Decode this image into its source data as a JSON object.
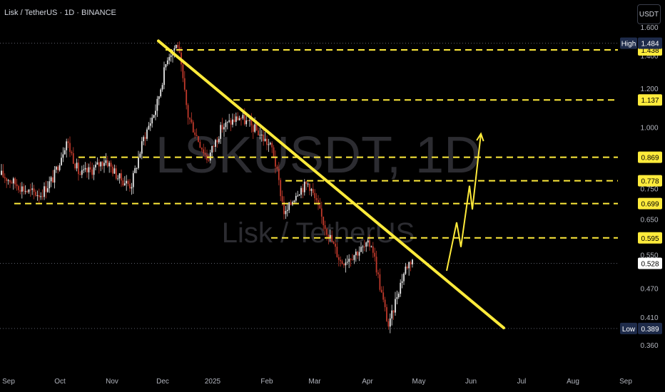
{
  "header": {
    "title": "Lisk / TetherUS · 1D · BINANCE",
    "currency_button": "USDT"
  },
  "watermark": {
    "ticker": "LSKUSDT, 1D",
    "name": "Lisk / TetherUS"
  },
  "colors": {
    "background": "#000000",
    "up_candle": "#e8e8e8",
    "down_candle": "#c0392b",
    "level_line": "#ffeb3b",
    "trendline": "#ffeb3b",
    "axis_text": "#b2b5be",
    "badge_yellow": "#ffeb3b",
    "badge_navy": "#1e2b4a"
  },
  "chart_data": {
    "type": "candlestick",
    "x_axis": {
      "tick_labels": [
        "Sep",
        "Oct",
        "Nov",
        "Dec",
        "2025",
        "Feb",
        "Mar",
        "Apr",
        "May",
        "Jun",
        "Jul",
        "Aug",
        "Sep"
      ]
    },
    "y_axis": {
      "scale": "log",
      "range": [
        0.33,
        1.7
      ],
      "tick_labels": [
        "1.600",
        "1.400",
        "1.200",
        "1.000",
        "0.750",
        "0.650",
        "0.550",
        "0.470",
        "0.410",
        "0.360"
      ],
      "ticks": [
        1.6,
        1.4,
        1.2,
        1.0,
        0.75,
        0.65,
        0.55,
        0.47,
        0.41,
        0.36
      ]
    },
    "price_labels": {
      "high": {
        "label": "High",
        "value": "1.484"
      },
      "low": {
        "label": "Low",
        "value": "0.389"
      },
      "current": "0.528",
      "levels": [
        "1.438",
        "1.137",
        "0.869",
        "0.778",
        "0.699",
        "0.595"
      ]
    },
    "levels": [
      1.438,
      1.137,
      0.869,
      0.778,
      0.699,
      0.595
    ],
    "high": 1.484,
    "low": 0.389,
    "current": 0.528,
    "trendline": {
      "from": [
        "Dec",
        1.5
      ],
      "to": [
        "Jun",
        0.39
      ]
    },
    "projection": [
      0.51,
      0.64,
      0.57,
      0.76,
      0.68,
      0.97
    ],
    "candle_anchors": [
      [
        "Sep",
        0.8
      ],
      [
        "Sep",
        0.74
      ],
      [
        "Sep",
        0.73
      ],
      [
        "Sep",
        0.79
      ],
      [
        "Oct",
        0.94
      ],
      [
        "Oct",
        0.8
      ],
      [
        "Oct",
        0.82
      ],
      [
        "Oct",
        0.86
      ],
      [
        "Nov",
        0.79
      ],
      [
        "Nov",
        0.76
      ],
      [
        "Nov",
        0.95
      ],
      [
        "Nov",
        1.1
      ],
      [
        "Dec",
        1.4
      ],
      [
        "Dec",
        1.48
      ],
      [
        "Dec",
        1.06
      ],
      [
        "Dec",
        0.95
      ],
      [
        "Dec",
        0.86
      ],
      [
        "2025",
        1.0
      ],
      [
        "2025",
        1.05
      ],
      [
        "2025",
        0.98
      ],
      [
        "Feb",
        0.9
      ],
      [
        "Feb",
        0.66
      ],
      [
        "Feb",
        0.74
      ],
      [
        "Feb",
        0.77
      ],
      [
        "Mar",
        0.64
      ],
      [
        "Mar",
        0.53
      ],
      [
        "Mar",
        0.56
      ],
      [
        "Apr",
        0.58
      ],
      [
        "Apr",
        0.47
      ],
      [
        "Apr",
        0.39
      ],
      [
        "Apr",
        0.46
      ],
      [
        "Apr",
        0.52
      ],
      [
        "Apr",
        0.54
      ]
    ]
  }
}
